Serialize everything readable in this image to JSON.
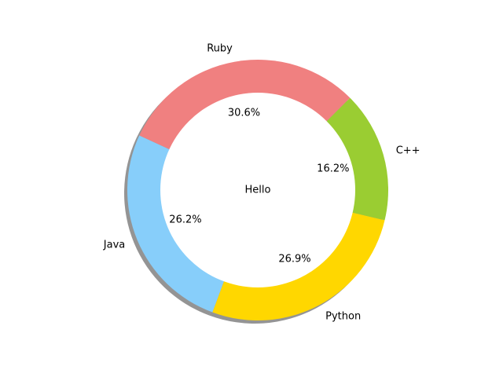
{
  "chart_data": {
    "type": "pie",
    "subtype": "donut",
    "center_label": "Hello",
    "start_angle_deg": 45,
    "direction": "counterclockwise",
    "shadow": true,
    "slices": [
      {
        "label": "Ruby",
        "value": 30.6,
        "pct_label": "30.6%",
        "color": "#f08080"
      },
      {
        "label": "Java",
        "value": 26.2,
        "pct_label": "26.2%",
        "color": "#87cefa"
      },
      {
        "label": "Python",
        "value": 26.9,
        "pct_label": "26.9%",
        "color": "#ffd700"
      },
      {
        "label": "C++",
        "value": 16.2,
        "pct_label": "16.2%",
        "color": "#9acd32"
      }
    ]
  }
}
